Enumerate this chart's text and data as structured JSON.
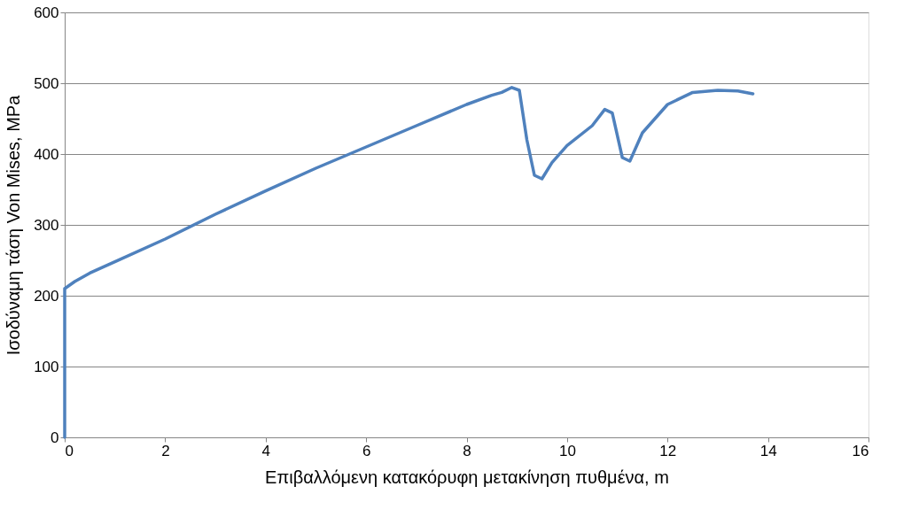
{
  "chart_data": {
    "type": "line",
    "xlabel": "Επιβαλλόμενη κατακόρυφη μετακίνηση πυθμένα, m",
    "ylabel": "Ισοδύναμη τάση Von Mises, MPa",
    "x": [
      0,
      0,
      0.2,
      0.5,
      1,
      2,
      3,
      4,
      5,
      6,
      7,
      8,
      8.5,
      8.7,
      8.9,
      9.05,
      9.2,
      9.35,
      9.5,
      9.7,
      10,
      10.5,
      10.75,
      10.9,
      11.1,
      11.25,
      11.5,
      12,
      12.5,
      13,
      13.4,
      13.7
    ],
    "series": [
      {
        "color": "#4f81bd",
        "values": [
          0,
          210,
          220,
          232,
          248,
          280,
          315,
          348,
          380,
          410,
          440,
          470,
          483,
          487,
          494,
          490,
          420,
          370,
          365,
          388,
          412,
          440,
          463,
          458,
          395,
          390,
          430,
          470,
          487,
          490,
          489,
          485
        ]
      }
    ],
    "xlim": [
      0,
      16
    ],
    "xticks": [
      0,
      2,
      4,
      6,
      8,
      10,
      12,
      14,
      16
    ],
    "ylim": [
      0,
      600
    ],
    "yticks": [
      0,
      100,
      200,
      300,
      400,
      500,
      600
    ],
    "grid": "y",
    "legend": false,
    "marker": "none",
    "line_style": "solid"
  }
}
